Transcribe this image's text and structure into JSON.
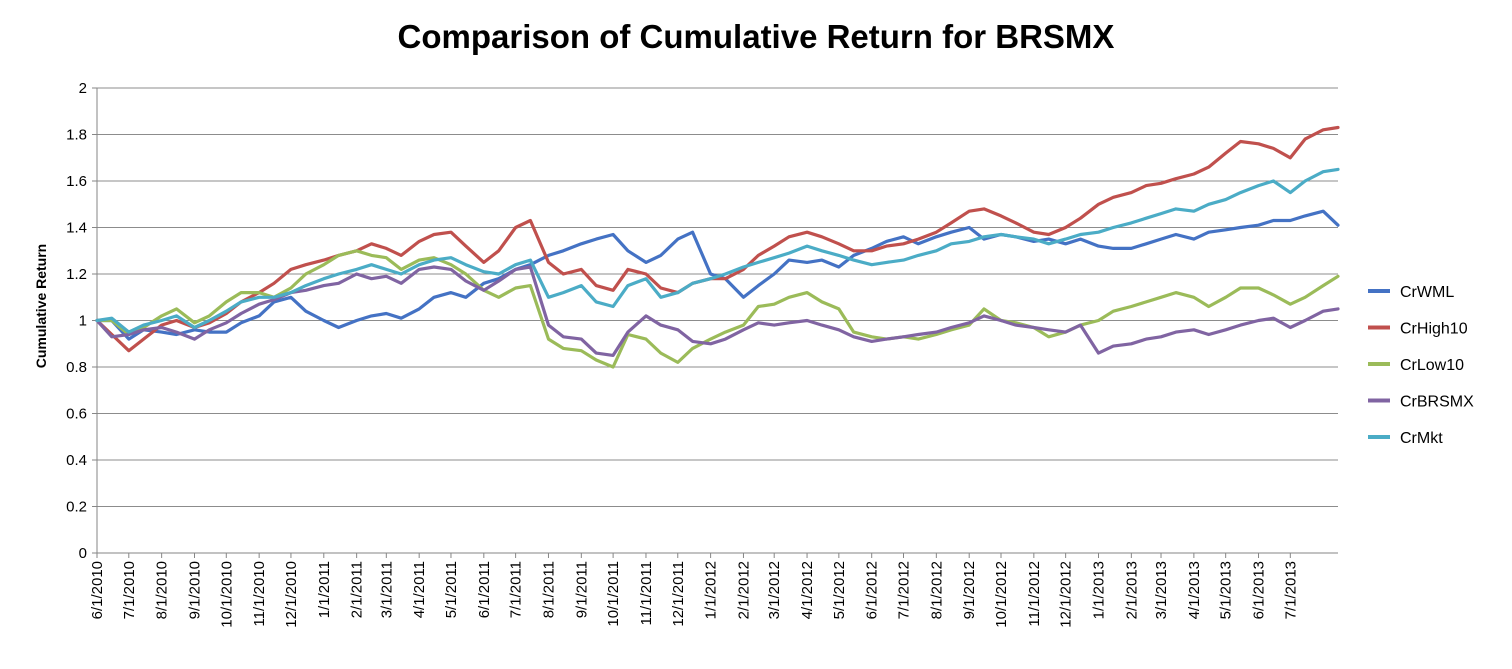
{
  "chart_data": {
    "type": "line",
    "title": "Comparison of Cumulative Return for BRSMX",
    "xlabel": "",
    "ylabel": "Cumulative Return",
    "ylim": [
      0,
      2
    ],
    "y_ticks": [
      "0",
      "0.2",
      "0.4",
      "0.6",
      "0.8",
      "1",
      "1.2",
      "1.4",
      "1.6",
      "1.8",
      "2"
    ],
    "x_ticks": [
      "6/1/2010",
      "7/1/2010",
      "8/1/2010",
      "9/1/2010",
      "10/1/2010",
      "11/1/2010",
      "12/1/2010",
      "1/1/2011",
      "2/1/2011",
      "3/1/2011",
      "4/1/2011",
      "5/1/2011",
      "6/1/2011",
      "7/1/2011",
      "8/1/2011",
      "9/1/2011",
      "10/1/2011",
      "11/1/2011",
      "12/1/2011",
      "1/1/2012",
      "2/1/2012",
      "3/1/2012",
      "4/1/2012",
      "5/1/2012",
      "6/1/2012",
      "7/1/2012",
      "8/1/2012",
      "9/1/2012",
      "10/1/2012",
      "11/1/2012",
      "12/1/2012",
      "1/1/2013",
      "2/1/2013",
      "3/1/2013",
      "4/1/2013",
      "5/1/2013",
      "6/1/2013",
      "7/1/2013"
    ],
    "x_end": "8/15/2013",
    "grid": "horizontal",
    "legend_position": "right",
    "x": [
      "6/1/2010",
      "6/15/2010",
      "7/1/2010",
      "7/15/2010",
      "8/1/2010",
      "8/15/2010",
      "9/1/2010",
      "9/15/2010",
      "10/1/2010",
      "10/15/2010",
      "11/1/2010",
      "11/15/2010",
      "12/1/2010",
      "12/15/2010",
      "1/1/2011",
      "1/15/2011",
      "2/1/2011",
      "2/15/2011",
      "3/1/2011",
      "3/15/2011",
      "4/1/2011",
      "4/15/2011",
      "5/1/2011",
      "5/15/2011",
      "6/1/2011",
      "6/15/2011",
      "7/1/2011",
      "7/15/2011",
      "8/1/2011",
      "8/15/2011",
      "9/1/2011",
      "9/15/2011",
      "10/1/2011",
      "10/15/2011",
      "11/1/2011",
      "11/15/2011",
      "12/1/2011",
      "12/15/2011",
      "1/1/2012",
      "1/15/2012",
      "2/1/2012",
      "2/15/2012",
      "3/1/2012",
      "3/15/2012",
      "4/1/2012",
      "4/15/2012",
      "5/1/2012",
      "5/15/2012",
      "6/1/2012",
      "6/15/2012",
      "7/1/2012",
      "7/15/2012",
      "8/1/2012",
      "8/15/2012",
      "9/1/2012",
      "9/15/2012",
      "10/1/2012",
      "10/15/2012",
      "11/1/2012",
      "11/15/2012",
      "12/1/2012",
      "12/15/2012",
      "1/1/2013",
      "1/15/2013",
      "2/1/2013",
      "2/15/2013",
      "3/1/2013",
      "3/15/2013",
      "4/1/2013",
      "4/15/2013",
      "5/1/2013",
      "5/15/2013",
      "6/1/2013",
      "6/15/2013",
      "7/1/2013",
      "7/15/2013",
      "8/1/2013",
      "8/15/2013"
    ],
    "series": [
      {
        "name": "CrWML",
        "color": "#4472C4",
        "values": [
          1.0,
          1.0,
          0.92,
          0.96,
          0.95,
          0.94,
          0.96,
          0.95,
          0.95,
          0.99,
          1.02,
          1.08,
          1.1,
          1.04,
          1.0,
          0.97,
          1.0,
          1.02,
          1.03,
          1.01,
          1.05,
          1.1,
          1.12,
          1.1,
          1.16,
          1.18,
          1.22,
          1.24,
          1.28,
          1.3,
          1.33,
          1.35,
          1.37,
          1.3,
          1.25,
          1.28,
          1.35,
          1.38,
          1.2,
          1.18,
          1.1,
          1.15,
          1.2,
          1.26,
          1.25,
          1.26,
          1.23,
          1.28,
          1.31,
          1.34,
          1.36,
          1.33,
          1.36,
          1.38,
          1.4,
          1.35,
          1.37,
          1.36,
          1.34,
          1.35,
          1.33,
          1.35,
          1.32,
          1.31,
          1.31,
          1.33,
          1.35,
          1.37,
          1.35,
          1.38,
          1.39,
          1.4,
          1.41,
          1.43,
          1.43,
          1.45,
          1.47,
          1.41
        ]
      },
      {
        "name": "CrHigh10",
        "color": "#C0504D",
        "values": [
          1.0,
          0.94,
          0.87,
          0.92,
          0.98,
          1.0,
          0.97,
          0.99,
          1.03,
          1.08,
          1.12,
          1.16,
          1.22,
          1.24,
          1.26,
          1.28,
          1.3,
          1.33,
          1.31,
          1.28,
          1.34,
          1.37,
          1.38,
          1.32,
          1.25,
          1.3,
          1.4,
          1.43,
          1.25,
          1.2,
          1.22,
          1.15,
          1.13,
          1.22,
          1.2,
          1.14,
          1.12,
          1.16,
          1.18,
          1.18,
          1.22,
          1.28,
          1.32,
          1.36,
          1.38,
          1.36,
          1.33,
          1.3,
          1.3,
          1.32,
          1.33,
          1.35,
          1.38,
          1.42,
          1.47,
          1.48,
          1.45,
          1.42,
          1.38,
          1.37,
          1.4,
          1.44,
          1.5,
          1.53,
          1.55,
          1.58,
          1.59,
          1.61,
          1.63,
          1.66,
          1.72,
          1.77,
          1.76,
          1.74,
          1.7,
          1.78,
          1.82,
          1.83
        ]
      },
      {
        "name": "CrLow10",
        "color": "#9BBB59",
        "values": [
          1.0,
          1.0,
          0.94,
          0.97,
          1.02,
          1.05,
          0.99,
          1.02,
          1.08,
          1.12,
          1.12,
          1.1,
          1.14,
          1.2,
          1.24,
          1.28,
          1.3,
          1.28,
          1.27,
          1.22,
          1.26,
          1.27,
          1.24,
          1.2,
          1.13,
          1.1,
          1.14,
          1.15,
          0.92,
          0.88,
          0.87,
          0.83,
          0.8,
          0.94,
          0.92,
          0.86,
          0.82,
          0.88,
          0.92,
          0.95,
          0.98,
          1.06,
          1.07,
          1.1,
          1.12,
          1.08,
          1.05,
          0.95,
          0.93,
          0.92,
          0.93,
          0.92,
          0.94,
          0.96,
          0.98,
          1.05,
          1.0,
          0.99,
          0.97,
          0.93,
          0.95,
          0.98,
          1.0,
          1.04,
          1.06,
          1.08,
          1.1,
          1.12,
          1.1,
          1.06,
          1.1,
          1.14,
          1.14,
          1.11,
          1.07,
          1.1,
          1.15,
          1.19
        ]
      },
      {
        "name": "CrBRSMX",
        "color": "#8064A2",
        "values": [
          1.0,
          0.93,
          0.94,
          0.96,
          0.97,
          0.95,
          0.92,
          0.96,
          0.99,
          1.03,
          1.07,
          1.09,
          1.12,
          1.13,
          1.15,
          1.16,
          1.2,
          1.18,
          1.19,
          1.16,
          1.22,
          1.23,
          1.22,
          1.17,
          1.13,
          1.17,
          1.22,
          1.23,
          0.98,
          0.93,
          0.92,
          0.86,
          0.85,
          0.95,
          1.02,
          0.98,
          0.96,
          0.91,
          0.9,
          0.92,
          0.96,
          0.99,
          0.98,
          0.99,
          1.0,
          0.98,
          0.96,
          0.93,
          0.91,
          0.92,
          0.93,
          0.94,
          0.95,
          0.97,
          0.99,
          1.02,
          1.0,
          0.98,
          0.97,
          0.96,
          0.95,
          0.98,
          0.86,
          0.89,
          0.9,
          0.92,
          0.93,
          0.95,
          0.96,
          0.94,
          0.96,
          0.98,
          1.0,
          1.01,
          0.97,
          1.0,
          1.04,
          1.05
        ]
      },
      {
        "name": "CrMkt",
        "color": "#4BACC6",
        "values": [
          1.0,
          1.01,
          0.95,
          0.98,
          1.0,
          1.02,
          0.97,
          1.0,
          1.04,
          1.08,
          1.1,
          1.1,
          1.12,
          1.15,
          1.18,
          1.2,
          1.22,
          1.24,
          1.22,
          1.2,
          1.24,
          1.26,
          1.27,
          1.24,
          1.21,
          1.2,
          1.24,
          1.26,
          1.1,
          1.12,
          1.15,
          1.08,
          1.06,
          1.15,
          1.18,
          1.1,
          1.12,
          1.16,
          1.18,
          1.2,
          1.23,
          1.25,
          1.27,
          1.29,
          1.32,
          1.3,
          1.28,
          1.26,
          1.24,
          1.25,
          1.26,
          1.28,
          1.3,
          1.33,
          1.34,
          1.36,
          1.37,
          1.36,
          1.35,
          1.33,
          1.35,
          1.37,
          1.38,
          1.4,
          1.42,
          1.44,
          1.46,
          1.48,
          1.47,
          1.5,
          1.52,
          1.55,
          1.58,
          1.6,
          1.55,
          1.6,
          1.64,
          1.65
        ]
      }
    ]
  }
}
